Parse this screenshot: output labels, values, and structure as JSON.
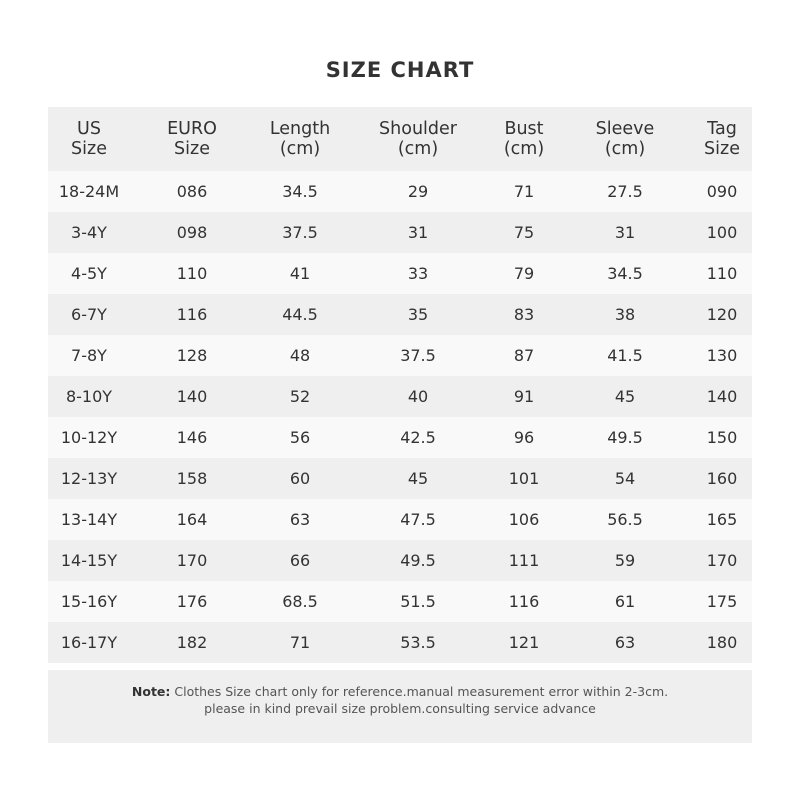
{
  "title": "SIZE CHART",
  "table": {
    "headers": [
      "US\nSize",
      "EURO\nSize",
      "Length\n(cm)",
      "Shoulder\n(cm)",
      "Bust\n(cm)",
      "Sleeve\n(cm)",
      "Tag\nSize"
    ],
    "rows": [
      [
        "18-24M",
        "086",
        "34.5",
        "29",
        "71",
        "27.5",
        "090"
      ],
      [
        "3-4Y",
        "098",
        "37.5",
        "31",
        "75",
        "31",
        "100"
      ],
      [
        "4-5Y",
        "110",
        "41",
        "33",
        "79",
        "34.5",
        "110"
      ],
      [
        "6-7Y",
        "116",
        "44.5",
        "35",
        "83",
        "38",
        "120"
      ],
      [
        "7-8Y",
        "128",
        "48",
        "37.5",
        "87",
        "41.5",
        "130"
      ],
      [
        "8-10Y",
        "140",
        "52",
        "40",
        "91",
        "45",
        "140"
      ],
      [
        "10-12Y",
        "146",
        "56",
        "42.5",
        "96",
        "49.5",
        "150"
      ],
      [
        "12-13Y",
        "158",
        "60",
        "45",
        "101",
        "54",
        "160"
      ],
      [
        "13-14Y",
        "164",
        "63",
        "47.5",
        "106",
        "56.5",
        "165"
      ],
      [
        "14-15Y",
        "170",
        "66",
        "49.5",
        "111",
        "59",
        "170"
      ],
      [
        "15-16Y",
        "176",
        "68.5",
        "51.5",
        "116",
        "61",
        "175"
      ],
      [
        "16-17Y",
        "182",
        "71",
        "53.5",
        "121",
        "63",
        "180"
      ]
    ]
  },
  "note": {
    "label": "Note:",
    "line1": " Clothes Size chart only for reference.manual measurement error within 2-3cm.",
    "line2": "please in kind prevail size problem.consulting service advance"
  }
}
